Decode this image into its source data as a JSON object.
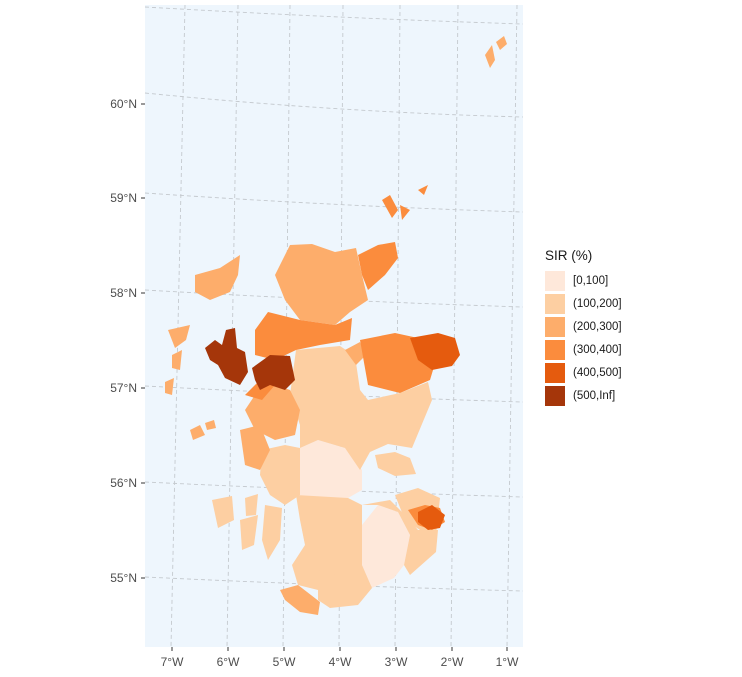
{
  "legend": {
    "title": "SIR (%)",
    "items": [
      {
        "label": "[0,100]",
        "color": "#FEE8DA"
      },
      {
        "label": "(100,200]",
        "color": "#FDCFA2"
      },
      {
        "label": "(200,300]",
        "color": "#FDAD6B"
      },
      {
        "label": "(300,400]",
        "color": "#FB8C3D"
      },
      {
        "label": "(400,500]",
        "color": "#E55B0E"
      },
      {
        "label": "(500,Inf]",
        "color": "#A5360A"
      }
    ]
  },
  "axes": {
    "lat_labels": [
      "60°N",
      "59°N",
      "58°N",
      "57°N",
      "56°N",
      "55°N"
    ],
    "lon_labels": [
      "7°W",
      "6°W",
      "5°W",
      "4°W",
      "3°W",
      "2°W",
      "1°W"
    ]
  },
  "colors": {
    "panel_bg": "#EEF6FD",
    "grid": "#C4C9CE"
  }
}
